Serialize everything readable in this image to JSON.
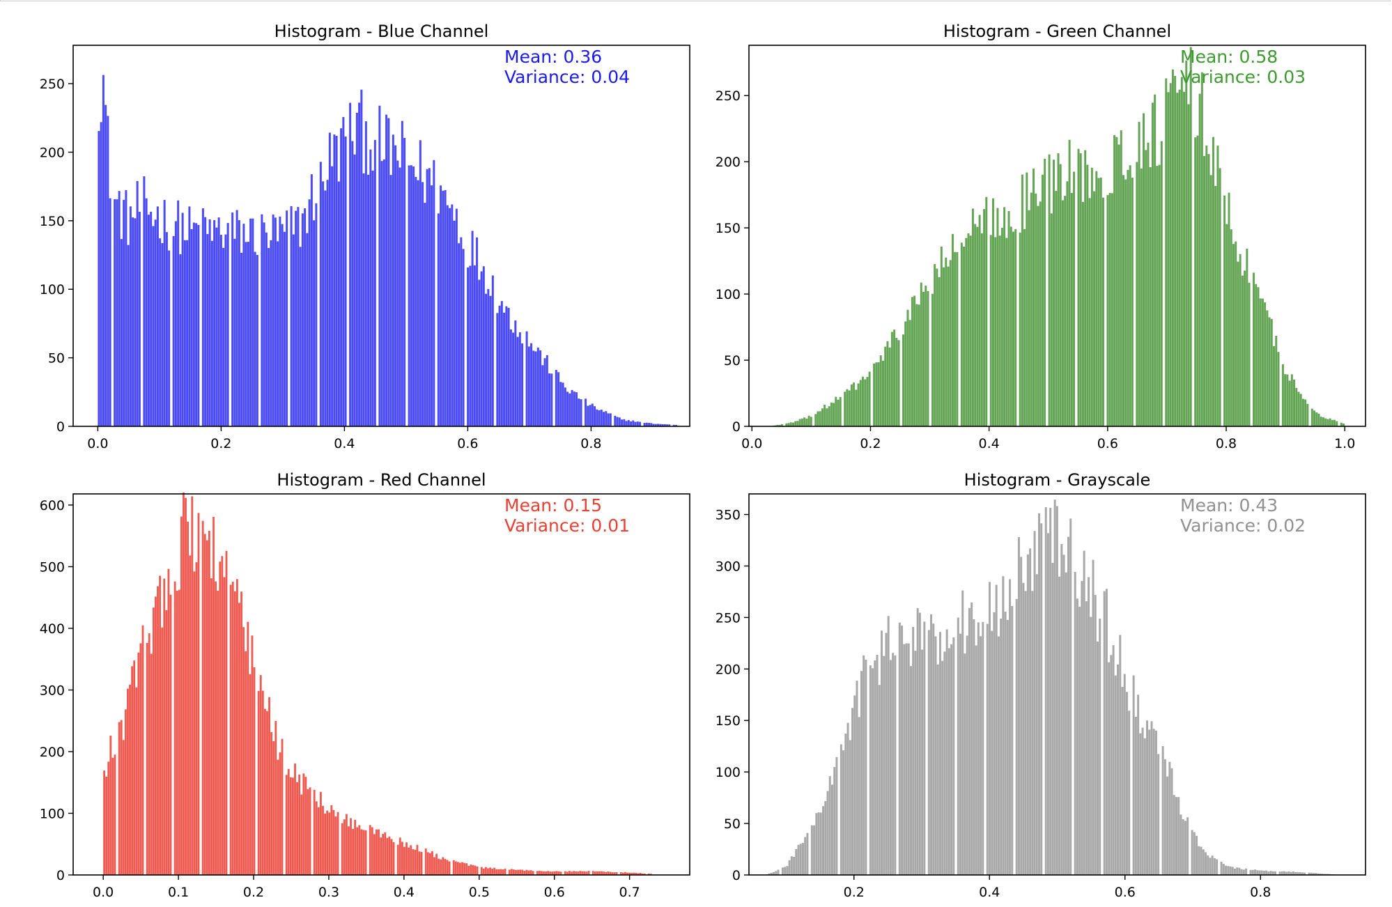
{
  "chart_data": [
    {
      "type": "bar",
      "title": "Histogram - Blue Channel",
      "color": "#4b4bf6",
      "annotation_color": "#1a1aee",
      "annotation": [
        "Mean: 0.36",
        "Variance: 0.04"
      ],
      "xlim": [
        -0.04,
        0.96
      ],
      "ylim": [
        0,
        278
      ],
      "xticks": [
        0.0,
        0.2,
        0.4,
        0.6,
        0.8
      ],
      "xtick_labels": [
        "0.0",
        "0.2",
        "0.4",
        "0.6",
        "0.8"
      ],
      "yticks": [
        0,
        50,
        100,
        150,
        200,
        250
      ],
      "ytick_labels": [
        "0",
        "50",
        "100",
        "150",
        "200",
        "250"
      ],
      "bins": 256,
      "range": [
        0.0,
        0.94
      ],
      "profile": [
        [
          0.0,
          245
        ],
        [
          0.008,
          262
        ],
        [
          0.015,
          210
        ],
        [
          0.025,
          165
        ],
        [
          0.05,
          150
        ],
        [
          0.07,
          162
        ],
        [
          0.1,
          152
        ],
        [
          0.15,
          142
        ],
        [
          0.2,
          142
        ],
        [
          0.25,
          140
        ],
        [
          0.3,
          140
        ],
        [
          0.33,
          148
        ],
        [
          0.37,
          190
        ],
        [
          0.42,
          218
        ],
        [
          0.46,
          205
        ],
        [
          0.5,
          195
        ],
        [
          0.55,
          175
        ],
        [
          0.58,
          155
        ],
        [
          0.6,
          135
        ],
        [
          0.63,
          112
        ],
        [
          0.66,
          85
        ],
        [
          0.7,
          62
        ],
        [
          0.73,
          45
        ],
        [
          0.76,
          28
        ],
        [
          0.8,
          15
        ],
        [
          0.85,
          5
        ],
        [
          0.9,
          2
        ],
        [
          0.94,
          1
        ]
      ]
    },
    {
      "type": "bar",
      "title": "Histogram - Green Channel",
      "color": "#63a455",
      "annotation_color": "#3c9a2e",
      "annotation": [
        "Mean: 0.58",
        "Variance: 0.03"
      ],
      "xlim": [
        -0.005,
        1.035
      ],
      "ylim": [
        0,
        288
      ],
      "xticks": [
        0.0,
        0.2,
        0.4,
        0.6,
        0.8,
        1.0
      ],
      "xtick_labels": [
        "0.0",
        "0.2",
        "0.4",
        "0.6",
        "0.8",
        "1.0"
      ],
      "yticks": [
        0,
        50,
        100,
        150,
        200,
        250
      ],
      "ytick_labels": [
        "0",
        "50",
        "100",
        "150",
        "200",
        "250"
      ],
      "bins": 256,
      "range": [
        0.03,
        1.0
      ],
      "profile": [
        [
          0.03,
          0
        ],
        [
          0.07,
          3
        ],
        [
          0.1,
          8
        ],
        [
          0.15,
          22
        ],
        [
          0.2,
          40
        ],
        [
          0.25,
          72
        ],
        [
          0.3,
          110
        ],
        [
          0.35,
          138
        ],
        [
          0.4,
          155
        ],
        [
          0.45,
          168
        ],
        [
          0.5,
          182
        ],
        [
          0.55,
          195
        ],
        [
          0.6,
          200
        ],
        [
          0.65,
          210
        ],
        [
          0.7,
          235
        ],
        [
          0.73,
          258
        ],
        [
          0.76,
          240
        ],
        [
          0.78,
          200
        ],
        [
          0.8,
          168
        ],
        [
          0.82,
          138
        ],
        [
          0.85,
          105
        ],
        [
          0.88,
          68
        ],
        [
          0.9,
          45
        ],
        [
          0.93,
          20
        ],
        [
          0.96,
          8
        ],
        [
          1.0,
          2
        ]
      ]
    },
    {
      "type": "bar",
      "title": "Histogram - Red Channel",
      "color": "#ef5a50",
      "annotation_color": "#ea3f33",
      "annotation": [
        "Mean: 0.15",
        "Variance: 0.01"
      ],
      "xlim": [
        -0.04,
        0.78
      ],
      "ylim": [
        0,
        618
      ],
      "xticks": [
        0.0,
        0.1,
        0.2,
        0.3,
        0.4,
        0.5,
        0.6,
        0.7
      ],
      "xtick_labels": [
        "0.0",
        "0.1",
        "0.2",
        "0.3",
        "0.4",
        "0.5",
        "0.6",
        "0.7"
      ],
      "yticks": [
        0,
        100,
        200,
        300,
        400,
        500,
        600
      ],
      "ytick_labels": [
        "0",
        "100",
        "200",
        "300",
        "400",
        "500",
        "600"
      ],
      "bins": 256,
      "range": [
        0.0,
        0.73
      ],
      "profile": [
        [
          0.0,
          150
        ],
        [
          0.01,
          200
        ],
        [
          0.03,
          260
        ],
        [
          0.05,
          360
        ],
        [
          0.07,
          430
        ],
        [
          0.09,
          510
        ],
        [
          0.11,
          555
        ],
        [
          0.13,
          555
        ],
        [
          0.15,
          530
        ],
        [
          0.17,
          470
        ],
        [
          0.19,
          380
        ],
        [
          0.21,
          300
        ],
        [
          0.23,
          220
        ],
        [
          0.25,
          170
        ],
        [
          0.28,
          130
        ],
        [
          0.3,
          105
        ],
        [
          0.33,
          85
        ],
        [
          0.36,
          70
        ],
        [
          0.4,
          52
        ],
        [
          0.45,
          28
        ],
        [
          0.5,
          12
        ],
        [
          0.55,
          8
        ],
        [
          0.6,
          6
        ],
        [
          0.65,
          6
        ],
        [
          0.7,
          4
        ],
        [
          0.73,
          2
        ]
      ]
    },
    {
      "type": "bar",
      "title": "Histogram - Grayscale",
      "color": "#a8a8a8",
      "annotation_color": "#909090",
      "annotation": [
        "Mean: 0.43",
        "Variance: 0.02"
      ],
      "xlim": [
        0.045,
        0.955
      ],
      "ylim": [
        0,
        370
      ],
      "xticks": [
        0.2,
        0.4,
        0.6,
        0.8
      ],
      "xtick_labels": [
        "0.2",
        "0.4",
        "0.6",
        "0.8"
      ],
      "yticks": [
        0,
        50,
        100,
        150,
        200,
        250,
        300,
        350
      ],
      "ytick_labels": [
        "0",
        "50",
        "100",
        "150",
        "200",
        "250",
        "300",
        "350"
      ],
      "bins": 256,
      "range": [
        0.07,
        0.92
      ],
      "profile": [
        [
          0.07,
          0
        ],
        [
          0.1,
          8
        ],
        [
          0.12,
          28
        ],
        [
          0.15,
          60
        ],
        [
          0.18,
          120
        ],
        [
          0.2,
          160
        ],
        [
          0.22,
          200
        ],
        [
          0.25,
          222
        ],
        [
          0.3,
          232
        ],
        [
          0.35,
          240
        ],
        [
          0.4,
          262
        ],
        [
          0.43,
          278
        ],
        [
          0.46,
          300
        ],
        [
          0.48,
          320
        ],
        [
          0.5,
          335
        ],
        [
          0.52,
          310
        ],
        [
          0.55,
          275
        ],
        [
          0.58,
          235
        ],
        [
          0.6,
          190
        ],
        [
          0.62,
          160
        ],
        [
          0.64,
          140
        ],
        [
          0.66,
          110
        ],
        [
          0.68,
          70
        ],
        [
          0.7,
          40
        ],
        [
          0.72,
          22
        ],
        [
          0.75,
          8
        ],
        [
          0.8,
          4
        ],
        [
          0.85,
          3
        ],
        [
          0.9,
          1
        ],
        [
          0.92,
          0
        ]
      ]
    }
  ]
}
